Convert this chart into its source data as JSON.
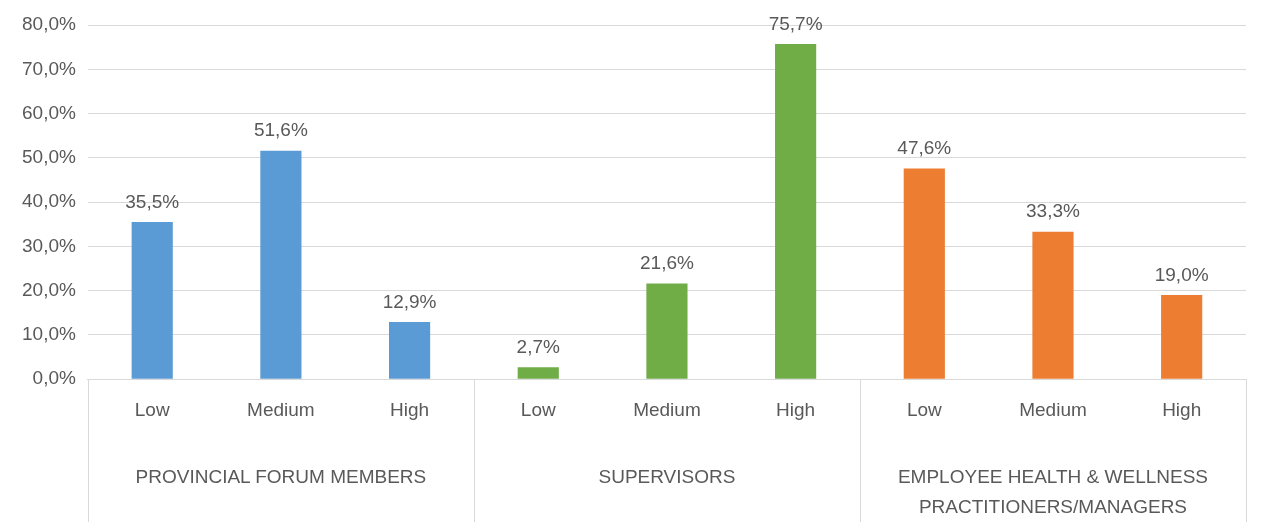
{
  "chart_data": {
    "type": "bar",
    "categories": [
      "Low",
      "Medium",
      "High",
      "Low",
      "Medium",
      "High",
      "Low",
      "Medium",
      "High"
    ],
    "values": [
      35.5,
      51.6,
      12.9,
      2.7,
      21.6,
      75.7,
      47.6,
      33.3,
      19.0
    ],
    "colors": [
      "#5b9bd5",
      "#5b9bd5",
      "#5b9bd5",
      "#70ad47",
      "#70ad47",
      "#70ad47",
      "#ed7d31",
      "#ed7d31",
      "#ed7d31"
    ],
    "value_labels": [
      "35,5%",
      "51,6%",
      "12,9%",
      "2,7%",
      "21,6%",
      "75,7%",
      "47,6%",
      "33,3%",
      "19,0%"
    ],
    "annotations": [
      "PROVINCIAL FORUM MEMBERS",
      "SUPERVISORS",
      "EMPLOYEE HEALTH & WELLNESS PRACTITIONERS/MANAGERS"
    ],
    "ylim": [
      0,
      80
    ],
    "yticks": [
      {
        "value": 0,
        "label": "0,0%"
      },
      {
        "value": 10,
        "label": "10,0%"
      },
      {
        "value": 20,
        "label": "20,0%"
      },
      {
        "value": 30,
        "label": "30,0%"
      },
      {
        "value": 40,
        "label": "40,0%"
      },
      {
        "value": 50,
        "label": "50,0%"
      },
      {
        "value": 60,
        "label": "60,0%"
      },
      {
        "value": 70,
        "label": "70,0%"
      },
      {
        "value": 80,
        "label": "80,0%"
      }
    ],
    "grid": "y",
    "legend": false
  }
}
